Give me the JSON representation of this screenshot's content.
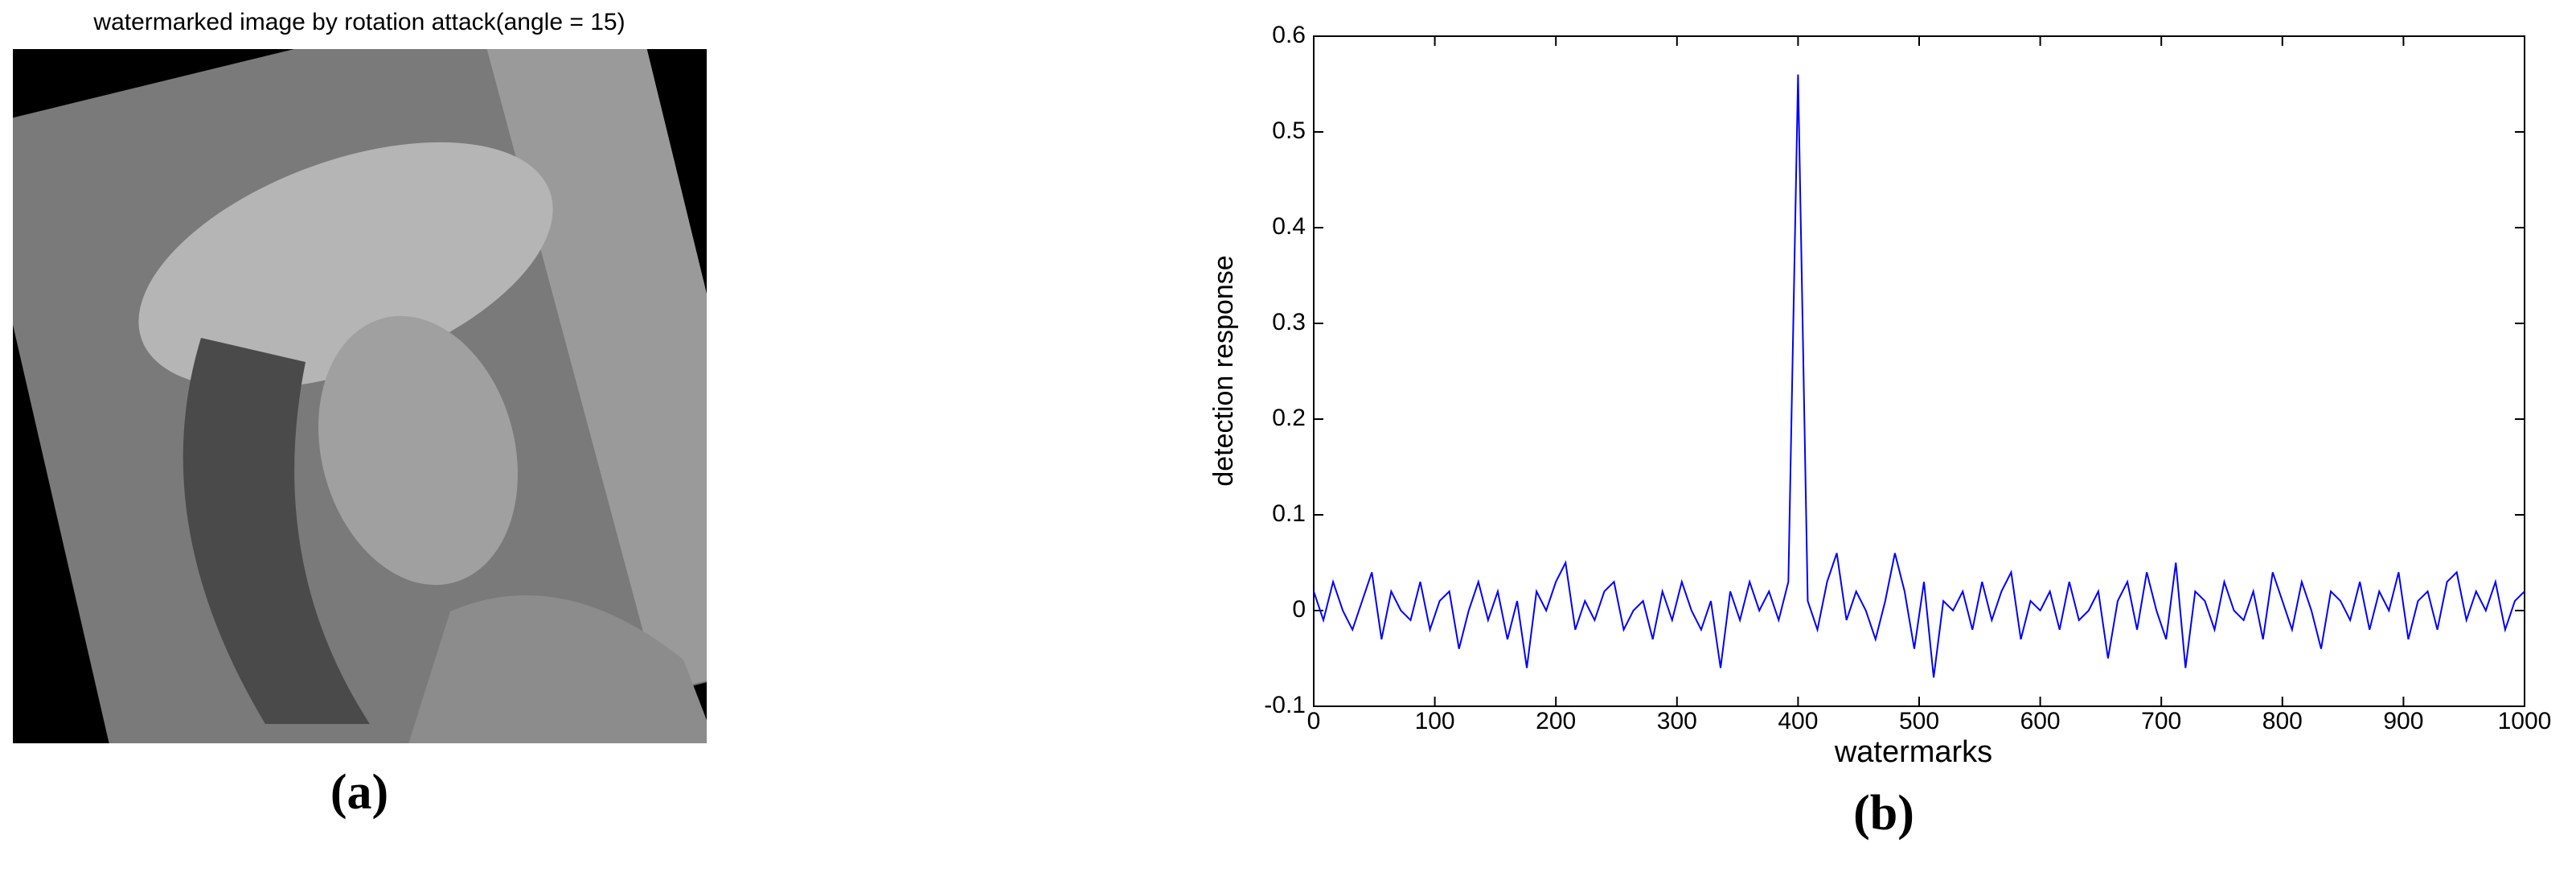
{
  "image_panel": {
    "title": "watermarked image by rotation attack(angle = 15)",
    "label": "(a)"
  },
  "chart_data": {
    "type": "line",
    "panel_label": "(b)",
    "xlabel": "watermarks",
    "ylabel": "detection response",
    "color": "#0000ff",
    "x": [
      0,
      8,
      16,
      24,
      32,
      40,
      48,
      56,
      64,
      72,
      80,
      88,
      96,
      104,
      112,
      120,
      128,
      136,
      144,
      152,
      160,
      168,
      176,
      184,
      192,
      200,
      208,
      216,
      224,
      232,
      240,
      248,
      256,
      264,
      272,
      280,
      288,
      296,
      304,
      312,
      320,
      328,
      336,
      344,
      352,
      360,
      368,
      376,
      384,
      392,
      400,
      408,
      416,
      424,
      432,
      440,
      448,
      456,
      464,
      472,
      480,
      488,
      496,
      504,
      512,
      520,
      528,
      536,
      544,
      552,
      560,
      568,
      576,
      584,
      592,
      600,
      608,
      616,
      624,
      632,
      640,
      648,
      656,
      664,
      672,
      680,
      688,
      696,
      704,
      712,
      720,
      728,
      736,
      744,
      752,
      760,
      768,
      776,
      784,
      792,
      800,
      808,
      816,
      824,
      832,
      840,
      848,
      856,
      864,
      872,
      880,
      888,
      896,
      904,
      912,
      920,
      928,
      936,
      944,
      952,
      960,
      968,
      976,
      984,
      992,
      1000
    ],
    "values": [
      0.02,
      -0.01,
      0.03,
      0.0,
      -0.02,
      0.01,
      0.04,
      -0.03,
      0.02,
      0.0,
      -0.01,
      0.03,
      -0.02,
      0.01,
      0.02,
      -0.04,
      0.0,
      0.03,
      -0.01,
      0.02,
      -0.03,
      0.01,
      -0.06,
      0.02,
      0.0,
      0.03,
      0.05,
      -0.02,
      0.01,
      -0.01,
      0.02,
      0.03,
      -0.02,
      0.0,
      0.01,
      -0.03,
      0.02,
      -0.01,
      0.03,
      0.0,
      -0.02,
      0.01,
      -0.06,
      0.02,
      -0.01,
      0.03,
      0.0,
      0.02,
      -0.01,
      0.03,
      0.56,
      0.01,
      -0.02,
      0.03,
      0.06,
      -0.01,
      0.02,
      0.0,
      -0.03,
      0.01,
      0.06,
      0.02,
      -0.04,
      0.03,
      -0.07,
      0.01,
      0.0,
      0.02,
      -0.02,
      0.03,
      -0.01,
      0.02,
      0.04,
      -0.03,
      0.01,
      0.0,
      0.02,
      -0.02,
      0.03,
      -0.01,
      0.0,
      0.02,
      -0.05,
      0.01,
      0.03,
      -0.02,
      0.04,
      0.0,
      -0.03,
      0.05,
      -0.06,
      0.02,
      0.01,
      -0.02,
      0.03,
      0.0,
      -0.01,
      0.02,
      -0.03,
      0.04,
      0.01,
      -0.02,
      0.03,
      0.0,
      -0.04,
      0.02,
      0.01,
      -0.01,
      0.03,
      -0.02,
      0.02,
      0.0,
      0.04,
      -0.03,
      0.01,
      0.02,
      -0.02,
      0.03,
      0.04,
      -0.01,
      0.02,
      0.0,
      0.03,
      -0.02,
      0.01,
      0.02
    ],
    "xlim": [
      0,
      1000
    ],
    "xticks": [
      0,
      100,
      200,
      300,
      400,
      500,
      600,
      700,
      800,
      900,
      1000
    ],
    "ylim": [
      -0.1,
      0.6
    ],
    "yticks": [
      -0.1,
      0,
      0.1,
      0.2,
      0.3,
      0.4,
      0.5,
      0.6
    ]
  }
}
